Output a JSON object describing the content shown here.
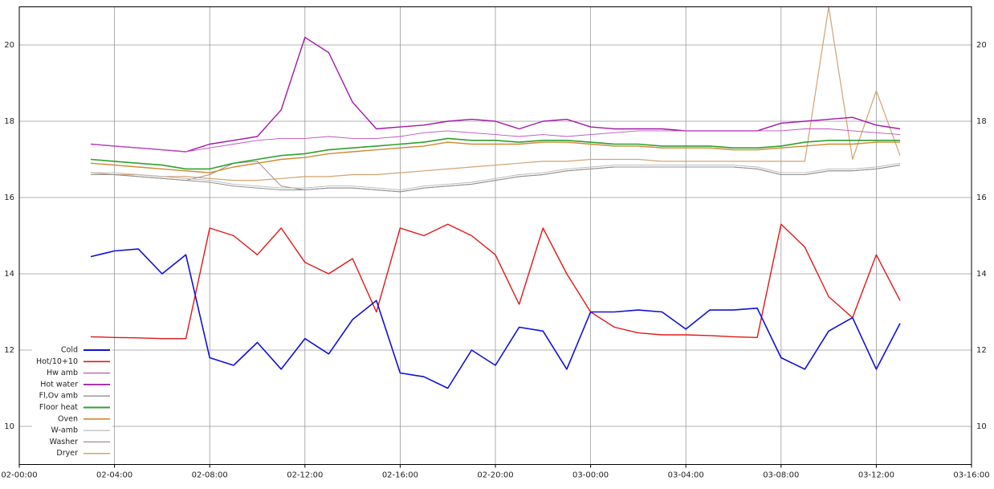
{
  "chart_data": {
    "type": "line",
    "x": [
      3,
      4,
      5,
      6,
      7,
      8,
      9,
      10,
      11,
      12,
      13,
      14,
      15,
      16,
      17,
      18,
      19,
      20,
      21,
      22,
      23,
      24,
      25,
      26,
      27,
      28,
      29,
      30,
      31,
      32,
      33,
      34,
      35,
      36,
      37
    ],
    "xlim": [
      0,
      40
    ],
    "xticks": [
      {
        "value": 0,
        "label": "02-00:00"
      },
      {
        "value": 4,
        "label": "02-04:00"
      },
      {
        "value": 8,
        "label": "02-08:00"
      },
      {
        "value": 12,
        "label": "02-12:00"
      },
      {
        "value": 16,
        "label": "02-16:00"
      },
      {
        "value": 20,
        "label": "02-20:00"
      },
      {
        "value": 24,
        "label": "03-00:00"
      },
      {
        "value": 28,
        "label": "03-04:00"
      },
      {
        "value": 32,
        "label": "03-08:00"
      },
      {
        "value": 36,
        "label": "03-12:00"
      },
      {
        "value": 40,
        "label": "03-16:00"
      }
    ],
    "ylim": [
      9,
      21
    ],
    "yticks": [
      10,
      12,
      14,
      16,
      18,
      20
    ],
    "grid": true,
    "legend": "lower left",
    "series": [
      {
        "name": "Cold",
        "color": "#1010d8",
        "width": 1.6,
        "values": [
          14.45,
          14.6,
          14.65,
          14.0,
          14.5,
          11.8,
          11.6,
          12.2,
          11.5,
          12.3,
          11.9,
          12.8,
          13.3,
          11.4,
          11.3,
          11.0,
          12.0,
          11.6,
          12.6,
          12.5,
          11.5,
          13.0,
          13.0,
          13.05,
          13.0,
          12.55,
          13.05,
          13.05,
          13.1,
          11.8,
          11.5,
          12.5,
          12.85,
          11.5,
          12.7
        ]
      },
      {
        "name": "Hot/10+10",
        "color": "#e01818",
        "width": 1.4,
        "values": [
          12.35,
          12.33,
          12.32,
          12.3,
          12.3,
          15.2,
          15.0,
          14.5,
          15.2,
          14.3,
          14.0,
          14.4,
          13.0,
          15.2,
          15.0,
          15.3,
          15.0,
          14.5,
          13.2,
          15.2,
          14.0,
          13.0,
          12.6,
          12.45,
          12.4,
          12.4,
          12.38,
          12.35,
          12.33,
          15.3,
          14.7,
          13.4,
          12.85,
          14.5,
          13.3
        ]
      },
      {
        "name": "Hw amb",
        "color": "#c050c0",
        "width": 0.9,
        "values": [
          17.4,
          17.35,
          17.3,
          17.25,
          17.2,
          17.3,
          17.4,
          17.5,
          17.55,
          17.55,
          17.6,
          17.55,
          17.55,
          17.6,
          17.7,
          17.75,
          17.7,
          17.65,
          17.6,
          17.65,
          17.6,
          17.65,
          17.7,
          17.75,
          17.75,
          17.75,
          17.75,
          17.75,
          17.75,
          17.75,
          17.8,
          17.8,
          17.75,
          17.7,
          17.65
        ]
      },
      {
        "name": "Hot water",
        "color": "#a018a8",
        "width": 1.4,
        "values": [
          17.4,
          17.35,
          17.3,
          17.25,
          17.2,
          17.4,
          17.5,
          17.6,
          18.3,
          20.2,
          19.8,
          18.5,
          17.8,
          17.85,
          17.9,
          18.0,
          18.05,
          18.0,
          17.8,
          18.0,
          18.05,
          17.85,
          17.8,
          17.8,
          17.8,
          17.75,
          17.75,
          17.75,
          17.75,
          17.95,
          18.0,
          18.05,
          18.1,
          17.9,
          17.8
        ]
      },
      {
        "name": "Fl,Ov amb",
        "color": "#909090",
        "width": 1.0,
        "values": [
          16.6,
          16.6,
          16.55,
          16.5,
          16.45,
          16.4,
          16.3,
          16.25,
          16.2,
          16.2,
          16.25,
          16.25,
          16.2,
          16.15,
          16.25,
          16.3,
          16.35,
          16.45,
          16.55,
          16.6,
          16.7,
          16.75,
          16.8,
          16.8,
          16.8,
          16.8,
          16.8,
          16.8,
          16.75,
          16.6,
          16.6,
          16.7,
          16.7,
          16.75,
          16.85
        ]
      },
      {
        "name": "Floor heat",
        "color": "#30a030",
        "width": 1.6,
        "values": [
          17.0,
          16.95,
          16.9,
          16.85,
          16.75,
          16.75,
          16.9,
          17.0,
          17.1,
          17.15,
          17.25,
          17.3,
          17.35,
          17.4,
          17.45,
          17.55,
          17.5,
          17.5,
          17.45,
          17.5,
          17.5,
          17.45,
          17.4,
          17.4,
          17.35,
          17.35,
          17.35,
          17.3,
          17.3,
          17.35,
          17.45,
          17.5,
          17.5,
          17.5,
          17.5
        ]
      },
      {
        "name": "Oven",
        "color": "#d08a30",
        "width": 1.4,
        "values": [
          16.9,
          16.85,
          16.8,
          16.75,
          16.7,
          16.65,
          16.8,
          16.9,
          17.0,
          17.05,
          17.15,
          17.2,
          17.25,
          17.3,
          17.35,
          17.45,
          17.4,
          17.4,
          17.4,
          17.45,
          17.45,
          17.4,
          17.35,
          17.35,
          17.3,
          17.3,
          17.3,
          17.25,
          17.25,
          17.3,
          17.35,
          17.4,
          17.4,
          17.45,
          17.45
        ]
      },
      {
        "name": "W-amb",
        "color": "#b8b8b8",
        "width": 0.9,
        "values": [
          16.65,
          16.65,
          16.6,
          16.55,
          16.5,
          16.45,
          16.35,
          16.3,
          16.25,
          16.25,
          16.3,
          16.3,
          16.25,
          16.2,
          16.3,
          16.35,
          16.4,
          16.5,
          16.6,
          16.65,
          16.75,
          16.8,
          16.85,
          16.85,
          16.85,
          16.85,
          16.85,
          16.85,
          16.8,
          16.65,
          16.65,
          16.75,
          16.75,
          16.8,
          16.9
        ]
      },
      {
        "name": "Washer",
        "color": "#a08c8c",
        "width": 1.0,
        "values": [
          16.6,
          16.6,
          16.55,
          16.5,
          16.45,
          16.6,
          16.9,
          16.95,
          16.3,
          16.2,
          16.25,
          16.25,
          16.2,
          16.15,
          16.25,
          16.3,
          16.35,
          16.45,
          16.55,
          16.6,
          16.7,
          16.75,
          16.8,
          16.8,
          16.8,
          16.8,
          16.8,
          16.8,
          16.75,
          16.6,
          16.6,
          16.7,
          16.7,
          16.75,
          16.85
        ]
      },
      {
        "name": "Dryer",
        "color": "#d4a272",
        "width": 1.2,
        "values": [
          16.65,
          16.6,
          16.6,
          16.55,
          16.55,
          16.5,
          16.45,
          16.45,
          16.5,
          16.55,
          16.55,
          16.6,
          16.6,
          16.65,
          16.7,
          16.75,
          16.8,
          16.85,
          16.9,
          16.95,
          16.95,
          17.0,
          17.0,
          17.0,
          16.95,
          16.95,
          16.95,
          16.95,
          16.95,
          16.95,
          16.95,
          21.0,
          17.0,
          18.8,
          17.1
        ]
      }
    ]
  }
}
